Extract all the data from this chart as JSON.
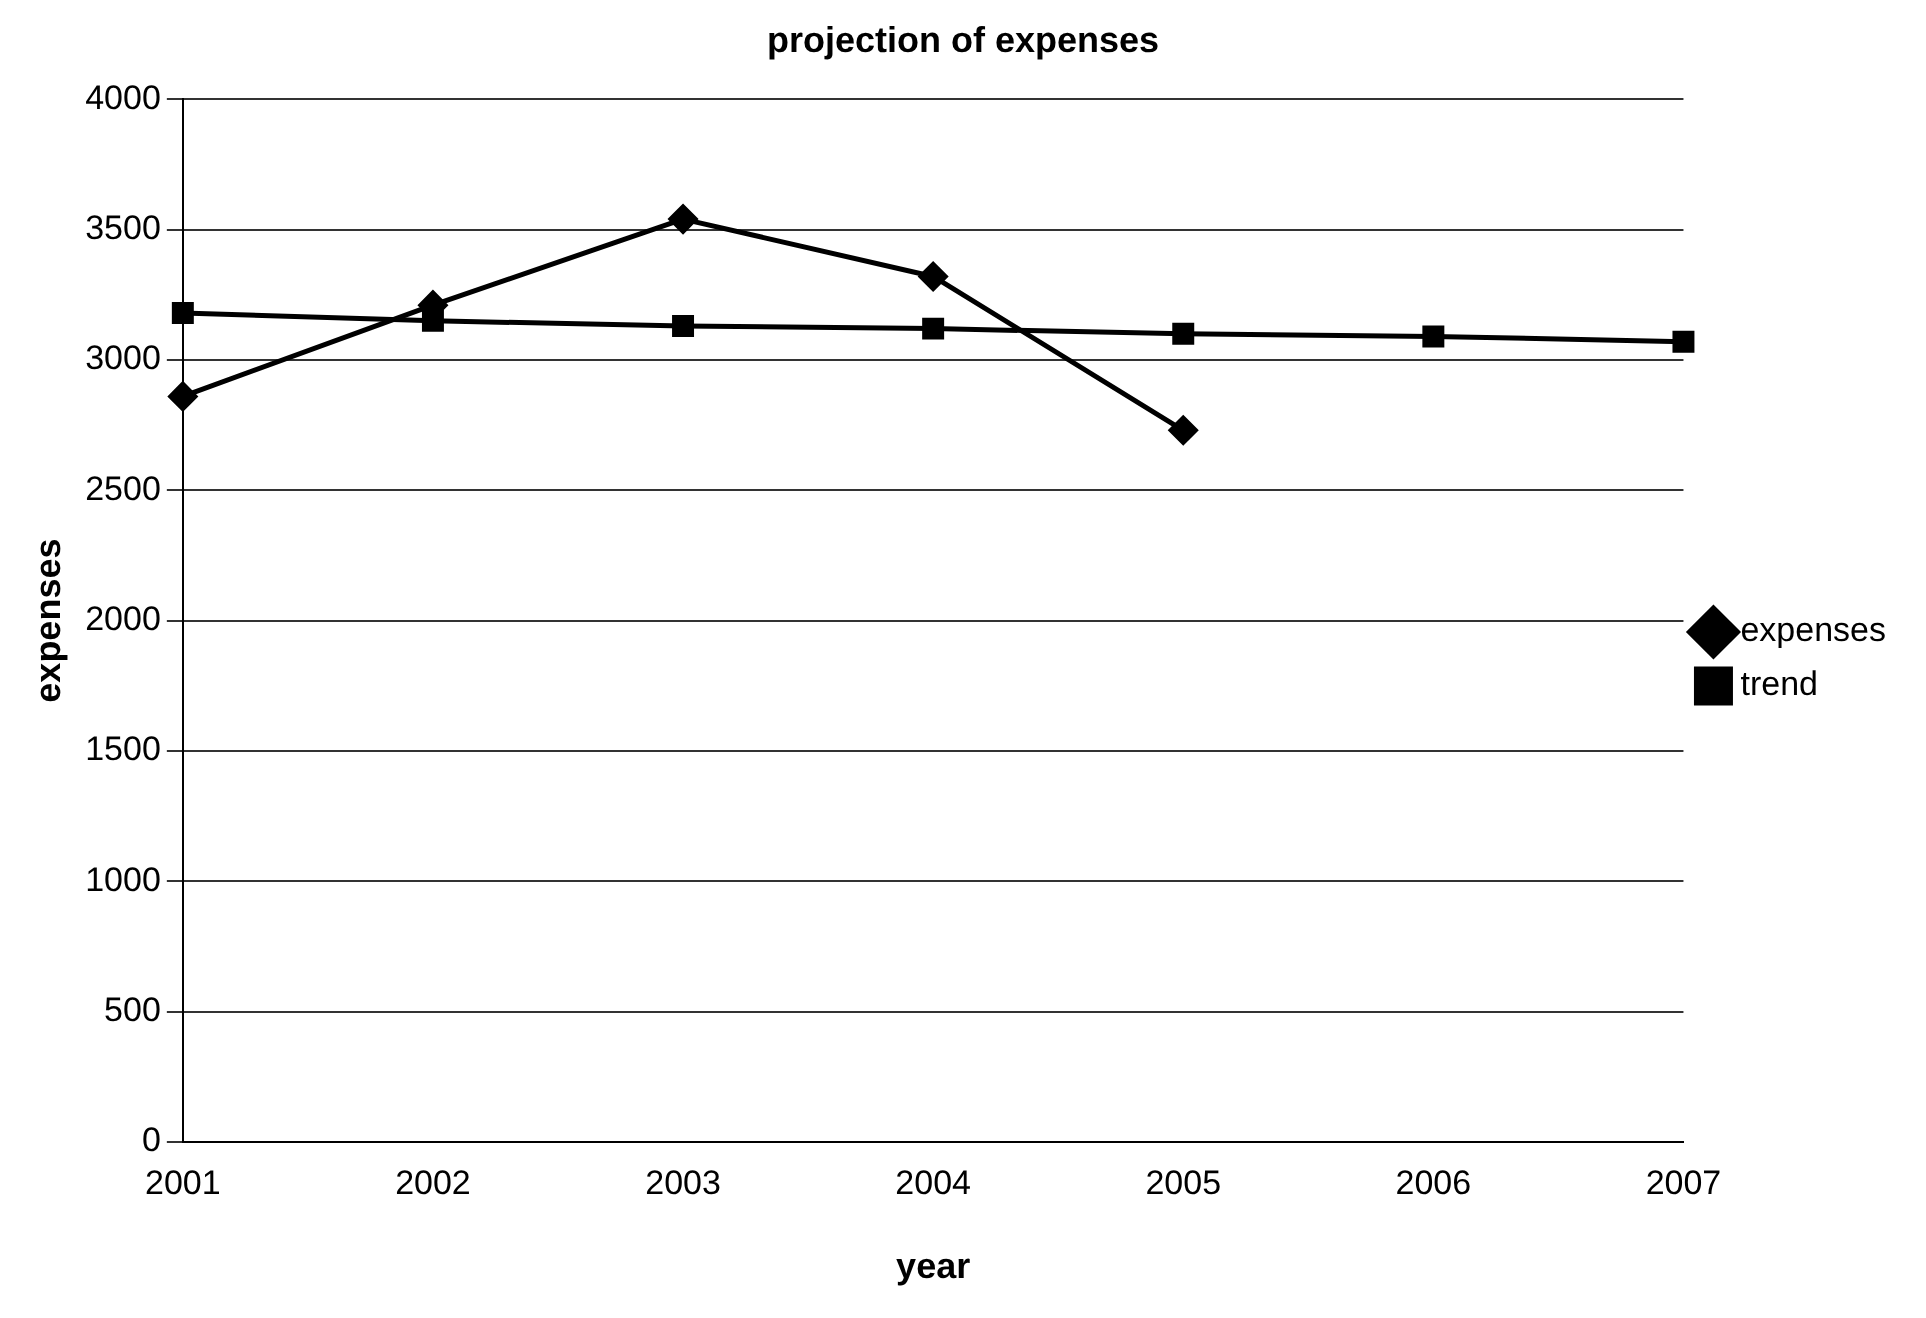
{
  "chart_data": {
    "type": "line",
    "title": "projection of expenses",
    "xlabel": "year",
    "ylabel": "expenses",
    "categories": [
      "2001",
      "2002",
      "2003",
      "2004",
      "2005",
      "2006",
      "2007"
    ],
    "series": [
      {
        "name": "expenses",
        "color": "#000000",
        "marker": "diamond",
        "values": [
          2860,
          3210,
          3540,
          3320,
          2730,
          null,
          null
        ]
      },
      {
        "name": "trend",
        "color": "#000000",
        "marker": "square",
        "values": [
          3180,
          3150,
          3130,
          3120,
          3100,
          3090,
          3070
        ]
      }
    ],
    "ylim": [
      0,
      4000
    ],
    "yticks": [
      0,
      500,
      1000,
      1500,
      2000,
      2500,
      3000,
      3500,
      4000
    ],
    "grid": "y",
    "legend": "right",
    "line_style": "solid"
  }
}
